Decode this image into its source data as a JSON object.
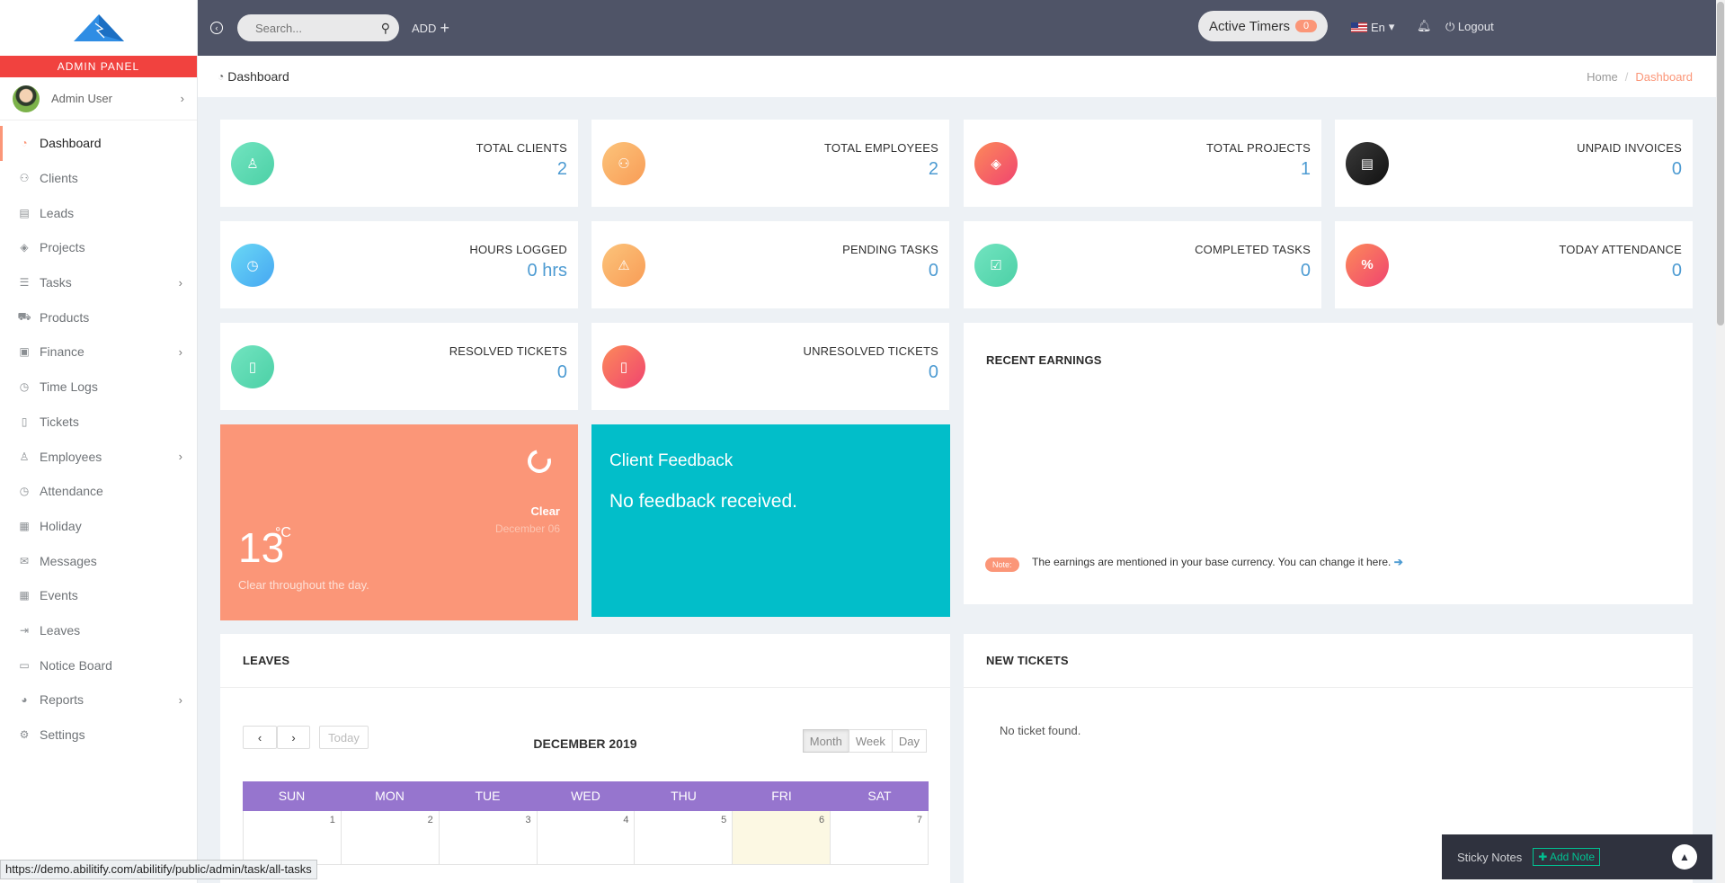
{
  "sidebar": {
    "admin_panel": "ADMIN PANEL",
    "user_name": "Admin User",
    "items": [
      {
        "label": "Dashboard",
        "icon": "dashboard-icon",
        "active": true
      },
      {
        "label": "Clients",
        "icon": "clients-icon"
      },
      {
        "label": "Leads",
        "icon": "leads-icon"
      },
      {
        "label": "Projects",
        "icon": "projects-icon"
      },
      {
        "label": "Tasks",
        "icon": "tasks-icon",
        "submenu": true
      },
      {
        "label": "Products",
        "icon": "cart-icon"
      },
      {
        "label": "Finance",
        "icon": "money-icon",
        "submenu": true
      },
      {
        "label": "Time Logs",
        "icon": "clock-icon"
      },
      {
        "label": "Tickets",
        "icon": "ticket-icon"
      },
      {
        "label": "Employees",
        "icon": "user-icon",
        "submenu": true
      },
      {
        "label": "Attendance",
        "icon": "clock-icon"
      },
      {
        "label": "Holiday",
        "icon": "calendar-icon"
      },
      {
        "label": "Messages",
        "icon": "envelope-icon"
      },
      {
        "label": "Events",
        "icon": "calendar-grid-icon"
      },
      {
        "label": "Leaves",
        "icon": "logout-icon"
      },
      {
        "label": "Notice Board",
        "icon": "laptop-icon"
      },
      {
        "label": "Reports",
        "icon": "pie-chart-icon",
        "submenu": true
      },
      {
        "label": "Settings",
        "icon": "gear-icon"
      }
    ]
  },
  "topbar": {
    "search_placeholder": "Search...",
    "add_label": "ADD",
    "active_timers_label": "Active Timers",
    "active_timers_count": "0",
    "language": "En",
    "logout_label": "Logout"
  },
  "header": {
    "page_title": "Dashboard",
    "breadcrumb_home": "Home",
    "breadcrumb_current": "Dashboard"
  },
  "stats": {
    "total_clients": {
      "label": "TOTAL CLIENTS",
      "value": "2"
    },
    "total_employees": {
      "label": "TOTAL EMPLOYEES",
      "value": "2"
    },
    "total_projects": {
      "label": "TOTAL PROJECTS",
      "value": "1"
    },
    "unpaid_invoices": {
      "label": "UNPAID INVOICES",
      "value": "0"
    },
    "hours_logged": {
      "label": "HOURS LOGGED",
      "value": "0 hrs"
    },
    "pending_tasks": {
      "label": "PENDING TASKS",
      "value": "0"
    },
    "completed_tasks": {
      "label": "COMPLETED TASKS",
      "value": "0"
    },
    "today_attendance": {
      "label": "TODAY ATTENDANCE",
      "value": "0"
    },
    "resolved_tickets": {
      "label": "RESOLVED TICKETS",
      "value": "0"
    },
    "unresolved_tickets": {
      "label": "UNRESOLVED TICKETS",
      "value": "0"
    }
  },
  "weather": {
    "condition": "Clear",
    "date": "December 06",
    "temperature": "13",
    "unit": "°C",
    "summary": "Clear throughout the day."
  },
  "feedback": {
    "title": "Client Feedback",
    "message": "No feedback received."
  },
  "earnings": {
    "title": "RECENT EARNINGS",
    "note_badge": "Note:",
    "note_text": "The earnings are mentioned in your base currency. You can change it here."
  },
  "leaves": {
    "title": "LEAVES",
    "today_btn": "Today",
    "month_title": "DECEMBER 2019",
    "views": [
      "Month",
      "Week",
      "Day"
    ],
    "weekdays": [
      "SUN",
      "MON",
      "TUE",
      "WED",
      "THU",
      "FRI",
      "SAT"
    ],
    "first_week": [
      "1",
      "2",
      "3",
      "4",
      "5",
      "6",
      "7"
    ]
  },
  "tickets": {
    "title": "NEW TICKETS",
    "empty": "No ticket found."
  },
  "sticky_notes": {
    "label": "Sticky Notes",
    "add_label": "Add Note"
  },
  "status_url": "https://demo.abilitify.com/abilitify/public/admin/task/all-tasks",
  "colors": {
    "accent": "#fb9678",
    "topbar": "#4f5467",
    "admin_bar": "#f1423f",
    "feedback": "#02bec9",
    "calendar_header": "#9675ce",
    "stat_value": "#4d9bd2"
  }
}
